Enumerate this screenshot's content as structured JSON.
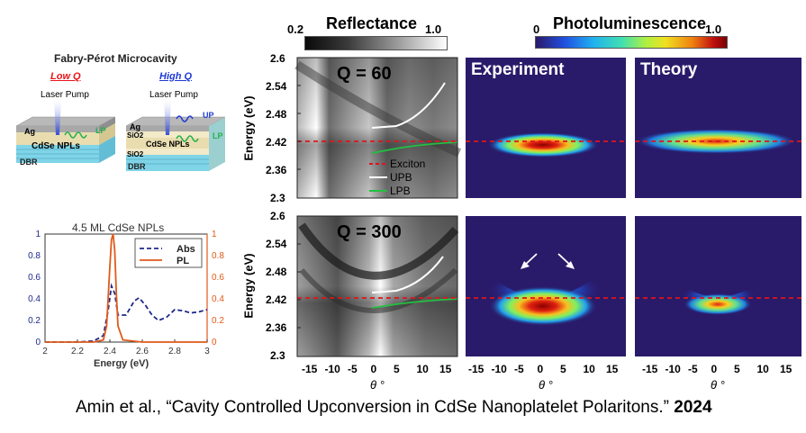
{
  "colorbars": {
    "reflectance": {
      "title": "Reflectance",
      "min": "0.2",
      "max": "1.0"
    },
    "photoluminescence": {
      "title": "Photoluminescence",
      "min": "0",
      "max": "1.0"
    }
  },
  "schematic": {
    "title": "Fabry-Pérot Microcavity",
    "low_q_label": "Low Q",
    "high_q_label": "High Q",
    "laser_pump": "Laser Pump",
    "layers_low": {
      "ag": "Ag",
      "npl": "CdSe NPLs",
      "dbr": "DBR",
      "lp": "LP"
    },
    "layers_high": {
      "ag": "Ag",
      "sio2_top": "SiO2",
      "npl": "CdSe NPLs",
      "sio2_bottom": "SiO2",
      "dbr": "DBR",
      "up": "UP",
      "lp": "LP"
    },
    "colors": {
      "low_q": "#e8141b",
      "high_q": "#1f3bd6",
      "green": "#22b14c"
    }
  },
  "panels": {
    "q60_label": "Q = 60",
    "q300_label": "Q = 300",
    "experiment": "Experiment",
    "theory": "Theory",
    "ylabel": "Energy (eV)",
    "xlabel": "θ °",
    "yticks": [
      "2.6",
      "2.54",
      "2.48",
      "2.42",
      "2.36",
      "2.3"
    ],
    "xticks": [
      "-15",
      "-10",
      "-5",
      "0",
      "5",
      "10",
      "15"
    ],
    "legend": {
      "exciton": "Exciton",
      "upb": "UPB",
      "lpb": "LPB"
    }
  },
  "chart_data": [
    {
      "type": "line",
      "title": "4.5 ML CdSe NPLs",
      "xlabel": "Energy (eV)",
      "xlim": [
        2.0,
        3.0
      ],
      "xticks": [
        "2",
        "2.2",
        "2.4",
        "2.6",
        "2.8",
        "3"
      ],
      "ylim_left": [
        0,
        1
      ],
      "ylim_right": [
        0,
        1
      ],
      "yticks": [
        "0",
        "0.2",
        "0.4",
        "0.6",
        "0.8",
        "1"
      ],
      "legend_position": "top-right",
      "series": [
        {
          "name": "Abs",
          "axis": "left",
          "style": "dashed",
          "color": "#1f2a8a",
          "x": [
            2.0,
            2.2,
            2.3,
            2.36,
            2.39,
            2.41,
            2.43,
            2.45,
            2.5,
            2.55,
            2.58,
            2.62,
            2.66,
            2.7,
            2.75,
            2.8,
            2.85,
            2.9,
            2.95,
            3.0
          ],
          "y": [
            0.0,
            0.0,
            0.01,
            0.06,
            0.3,
            0.52,
            0.45,
            0.25,
            0.25,
            0.38,
            0.41,
            0.34,
            0.25,
            0.2,
            0.23,
            0.3,
            0.29,
            0.27,
            0.28,
            0.3
          ]
        },
        {
          "name": "PL",
          "axis": "right",
          "style": "solid",
          "color": "#e05a1a",
          "x": [
            2.0,
            2.3,
            2.36,
            2.38,
            2.4,
            2.41,
            2.42,
            2.43,
            2.44,
            2.45,
            2.48,
            2.6,
            3.0
          ],
          "y": [
            0.0,
            0.0,
            0.02,
            0.15,
            0.7,
            0.95,
            1.0,
            0.85,
            0.45,
            0.15,
            0.02,
            0.0,
            0.0
          ]
        }
      ]
    }
  ],
  "citation": {
    "text": "Amin et al., “Cavity Controlled Upconversion in CdSe Nanoplatelet Polaritons.”",
    "year": "2024"
  }
}
